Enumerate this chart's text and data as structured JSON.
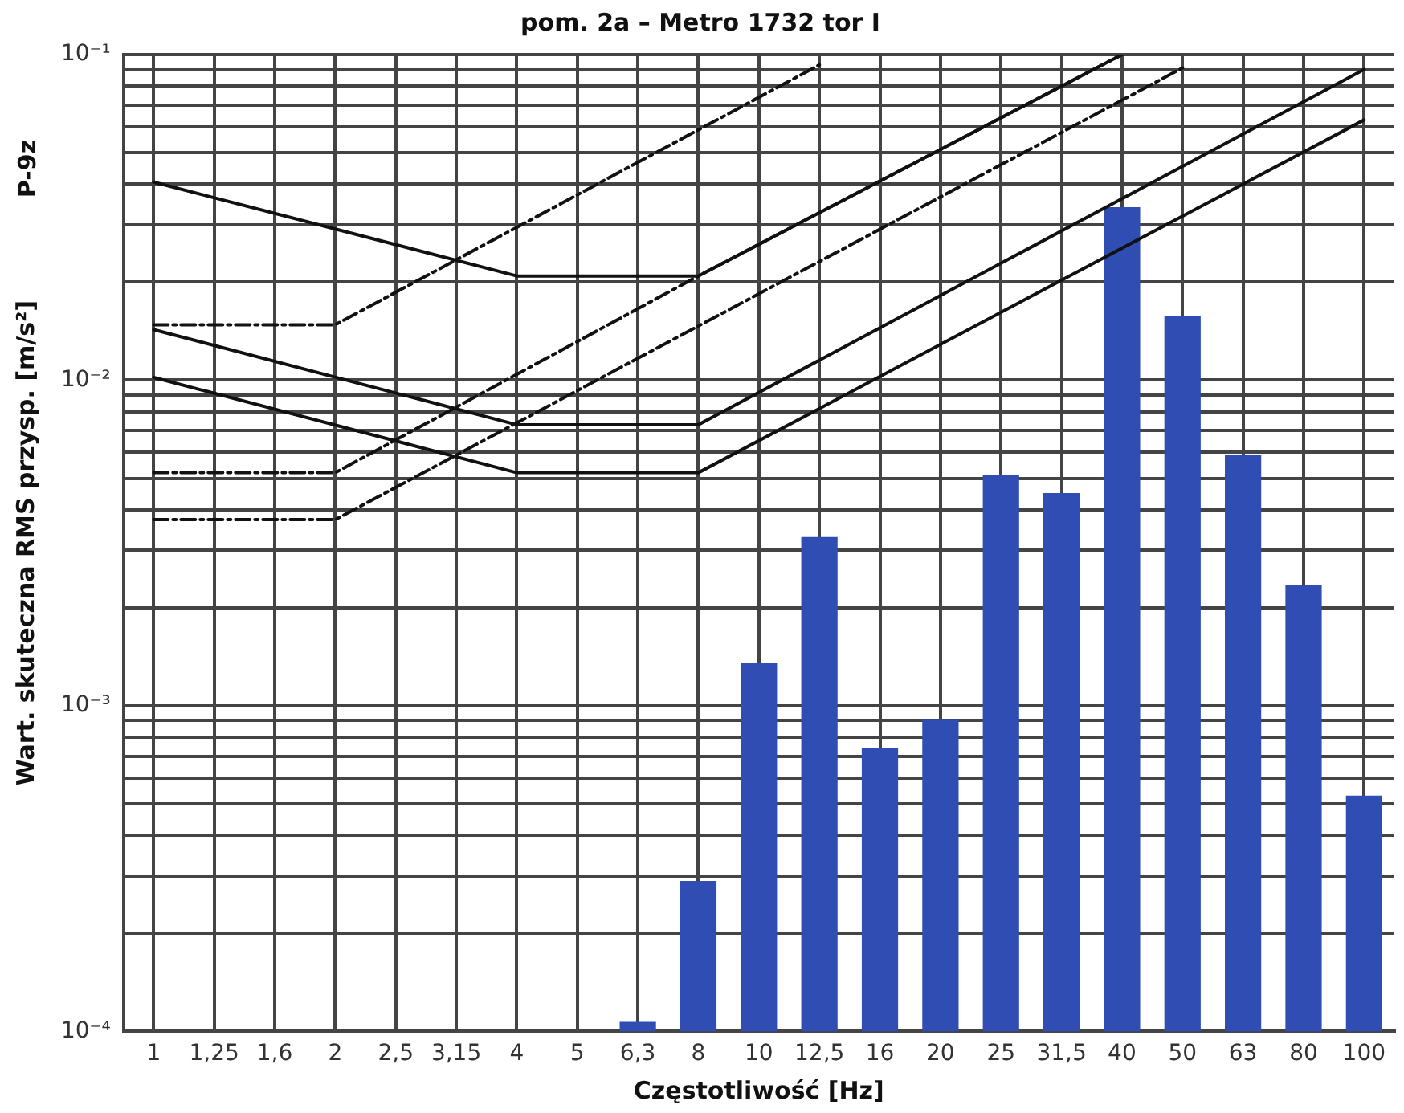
{
  "chart_data": {
    "type": "bar",
    "title": "pom. 2a – Metro 1732 tor I",
    "xlabel": "Częstotliwość [Hz]",
    "ylabel": "Wart. skuteczna RMS przysp. [m/s²]",
    "annotations": [
      "P-9z"
    ],
    "categories": [
      "1",
      "1,25",
      "1,6",
      "2",
      "2,5",
      "3,15",
      "4",
      "5",
      "6,3",
      "8",
      "10",
      "12,5",
      "16",
      "20",
      "25",
      "31,5",
      "40",
      "50",
      "63",
      "80",
      "100"
    ],
    "log": "y",
    "grid": true,
    "legend": false,
    "ylim": [
      0.0001,
      0.1
    ],
    "yticks": [
      {
        "value": 0.0001,
        "label": "10⁻⁴"
      },
      {
        "value": 0.0002,
        "label": null
      },
      {
        "value": 0.0003,
        "label": null
      },
      {
        "value": 0.0004,
        "label": null
      },
      {
        "value": 0.0005,
        "label": null
      },
      {
        "value": 0.0006,
        "label": null
      },
      {
        "value": 0.0007,
        "label": null
      },
      {
        "value": 0.0008,
        "label": null
      },
      {
        "value": 0.0009,
        "label": null
      },
      {
        "value": 0.001,
        "label": "10⁻³"
      },
      {
        "value": 0.002,
        "label": null
      },
      {
        "value": 0.003,
        "label": null
      },
      {
        "value": 0.004,
        "label": null
      },
      {
        "value": 0.005,
        "label": null
      },
      {
        "value": 0.006,
        "label": null
      },
      {
        "value": 0.007,
        "label": null
      },
      {
        "value": 0.008,
        "label": null
      },
      {
        "value": 0.009,
        "label": null
      },
      {
        "value": 0.01,
        "label": "10⁻²"
      },
      {
        "value": 0.02,
        "label": null
      },
      {
        "value": 0.03,
        "label": null
      },
      {
        "value": 0.04,
        "label": null
      },
      {
        "value": 0.05,
        "label": null
      },
      {
        "value": 0.06,
        "label": null
      },
      {
        "value": 0.07,
        "label": null
      },
      {
        "value": 0.08,
        "label": null
      },
      {
        "value": 0.09,
        "label": null
      },
      {
        "value": 0.1,
        "label": "10⁻¹"
      }
    ],
    "series": [
      {
        "color": "#2f4db3",
        "values": [
          null,
          null,
          null,
          null,
          null,
          null,
          null,
          null,
          0.000107,
          0.00029,
          0.00135,
          0.0033,
          0.00074,
          0.00091,
          0.0051,
          0.0045,
          0.034,
          0.0157,
          0.0059,
          0.00235,
          0.00053
        ]
      },
      {
        "type": "line",
        "color": "#111111",
        "line_style": "solid",
        "x": [
          "1",
          "4",
          "8",
          "40"
        ],
        "values": [
          0.0406,
          0.0209,
          0.0209,
          0.1
        ]
      },
      {
        "type": "line",
        "color": "#111111",
        "line_style": "solid",
        "x": [
          "1",
          "4",
          "8",
          "100"
        ],
        "values": [
          0.0143,
          0.0073,
          0.0073,
          0.09
        ]
      },
      {
        "type": "line",
        "color": "#111111",
        "line_style": "solid",
        "x": [
          "1",
          "4",
          "8",
          "100"
        ],
        "values": [
          0.0102,
          0.0052,
          0.0052,
          0.063
        ]
      },
      {
        "type": "line",
        "color": "#111111",
        "line_style": "dashed",
        "x": [
          "1",
          "2",
          "12,5"
        ],
        "values": [
          0.0148,
          0.0148,
          0.093
        ]
      },
      {
        "type": "line",
        "color": "#111111",
        "line_style": "dashed",
        "x": [
          "1",
          "2",
          "8",
          "40"
        ],
        "values": [
          0.0052,
          0.0052,
          0.0209,
          0.1
        ]
      },
      {
        "type": "line",
        "color": "#111111",
        "line_style": "dashed",
        "x": [
          "1",
          "2",
          "50"
        ],
        "values": [
          0.00373,
          0.00373,
          0.091
        ]
      }
    ]
  }
}
